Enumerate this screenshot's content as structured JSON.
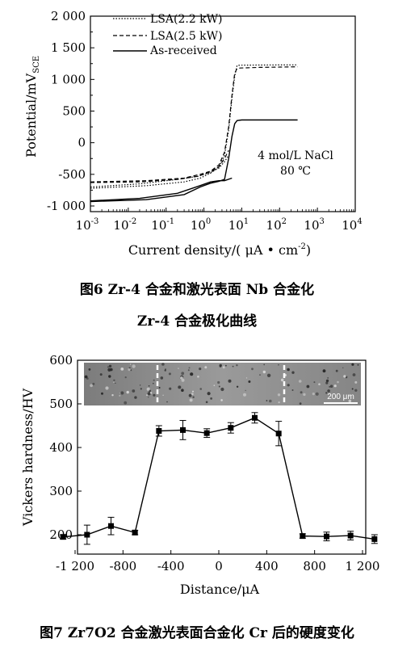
{
  "figure6": {
    "caption_line1": "图6 Zr-4 合金和激光表面 Nb 合金化",
    "caption_line2": "Zr-4 合金极化曲线",
    "annotation_line1": "4 mol/L NaCl",
    "annotation_line2": "80 ℃",
    "y_axis_title": "Potential/mV",
    "y_axis_subscript": "SCE",
    "x_axis_title": "Current density/( μA • cm",
    "x_axis_exponent": "-2",
    "x_axis_title_end": ")",
    "y_tick_labels": [
      "2 000",
      "1 500",
      "1 000",
      "500",
      "0",
      "-500",
      "-1 000"
    ],
    "x_tick_bases": [
      "10",
      "10",
      "10",
      "10",
      "10",
      "10",
      "10",
      "10"
    ],
    "x_tick_exponents": [
      "-3",
      "-2",
      "-1",
      "0",
      "1",
      "2",
      "3",
      "4"
    ],
    "chart_data": {
      "type": "line",
      "x_scale": "log",
      "xlim": [
        0.001,
        10000
      ],
      "ylim": [
        -1100,
        2000
      ],
      "grid": false,
      "legend_position": "top-left",
      "series": [
        {
          "name": "LSA(2.2 kW)",
          "style": "dotted",
          "branches": [
            {
              "x": [
                0.001,
                0.03,
                0.3,
                0.8,
                1.5,
                2.5,
                3.5,
                4.5,
                5.5,
                6.5,
                7.5,
                9.0,
                30,
                300
              ],
              "y": [
                -720,
                -680,
                -620,
                -560,
                -480,
                -380,
                -200,
                200,
                700,
                1050,
                1220,
                1225,
                1228,
                1230
              ]
            },
            {
              "x": [
                0.001,
                0.02,
                0.2,
                0.7,
                1.5,
                2.5,
                3.5,
                4.5
              ],
              "y": [
                -700,
                -650,
                -580,
                -530,
                -470,
                -400,
                -300,
                -200
              ]
            }
          ]
        },
        {
          "name": "LSA(2.5 kW)",
          "style": "dashed",
          "branches": [
            {
              "x": [
                0.001,
                0.03,
                0.3,
                0.8,
                1.5,
                2.5,
                3.5,
                4.5,
                5.5,
                6.5,
                7.5,
                9.0,
                30,
                300
              ],
              "y": [
                -620,
                -600,
                -560,
                -500,
                -450,
                -350,
                -150,
                250,
                750,
                1100,
                1170,
                1180,
                1190,
                1200
              ]
            },
            {
              "x": [
                0.001,
                0.02,
                0.2,
                0.7,
                1.5,
                2.5,
                3.5,
                4.5
              ],
              "y": [
                -630,
                -620,
                -580,
                -530,
                -460,
                -380,
                -250,
                -120
              ]
            }
          ]
        },
        {
          "name": "As-received",
          "style": "solid",
          "branches": [
            {
              "x": [
                0.001,
                0.03,
                0.3,
                0.8,
                1.5,
                2.5,
                3.5,
                4.5,
                5.5,
                6.5,
                7.5,
                10,
                50,
                300
              ],
              "y": [
                -930,
                -900,
                -820,
                -700,
                -640,
                -610,
                -580,
                -250,
                100,
                300,
                350,
                360,
                360,
                360
              ]
            },
            {
              "x": [
                0.001,
                0.02,
                0.2,
                0.7,
                1.5,
                2.5,
                3.5,
                5.5
              ],
              "y": [
                -920,
                -880,
                -800,
                -690,
                -620,
                -600,
                -600,
                -560
              ]
            }
          ]
        }
      ]
    }
  },
  "figure7": {
    "caption": "图7 Zr7O2 合金激光表面合金化 Cr 后的硬度变化",
    "y_axis_title": "Vickers hardness/HV",
    "x_axis_title": "Distance/μA",
    "scale_bar_label": "200 μm",
    "y_tick_labels": [
      "600",
      "500",
      "400",
      "300",
      "200"
    ],
    "x_tick_labels": [
      "-1 200",
      "-800",
      "-400",
      "0",
      "400",
      "800",
      "1 200"
    ],
    "chart_data": {
      "type": "line",
      "markers": "square",
      "error_bars": true,
      "xlim": [
        -1300,
        1350
      ],
      "ylim": [
        170,
        600
      ],
      "grid": false,
      "inset": "micrograph of alloyed layer with dashed boundary lines, scale bar 200 μm",
      "x": [
        -1300,
        -1100,
        -900,
        -700,
        -500,
        -300,
        -100,
        100,
        300,
        500,
        700,
        900,
        1100,
        1300
      ],
      "values": [
        195,
        200,
        220,
        205,
        438,
        440,
        433,
        445,
        468,
        432,
        197,
        196,
        198,
        190
      ],
      "errors": [
        5,
        22,
        20,
        5,
        12,
        22,
        10,
        12,
        12,
        28,
        5,
        10,
        10,
        10
      ]
    }
  }
}
